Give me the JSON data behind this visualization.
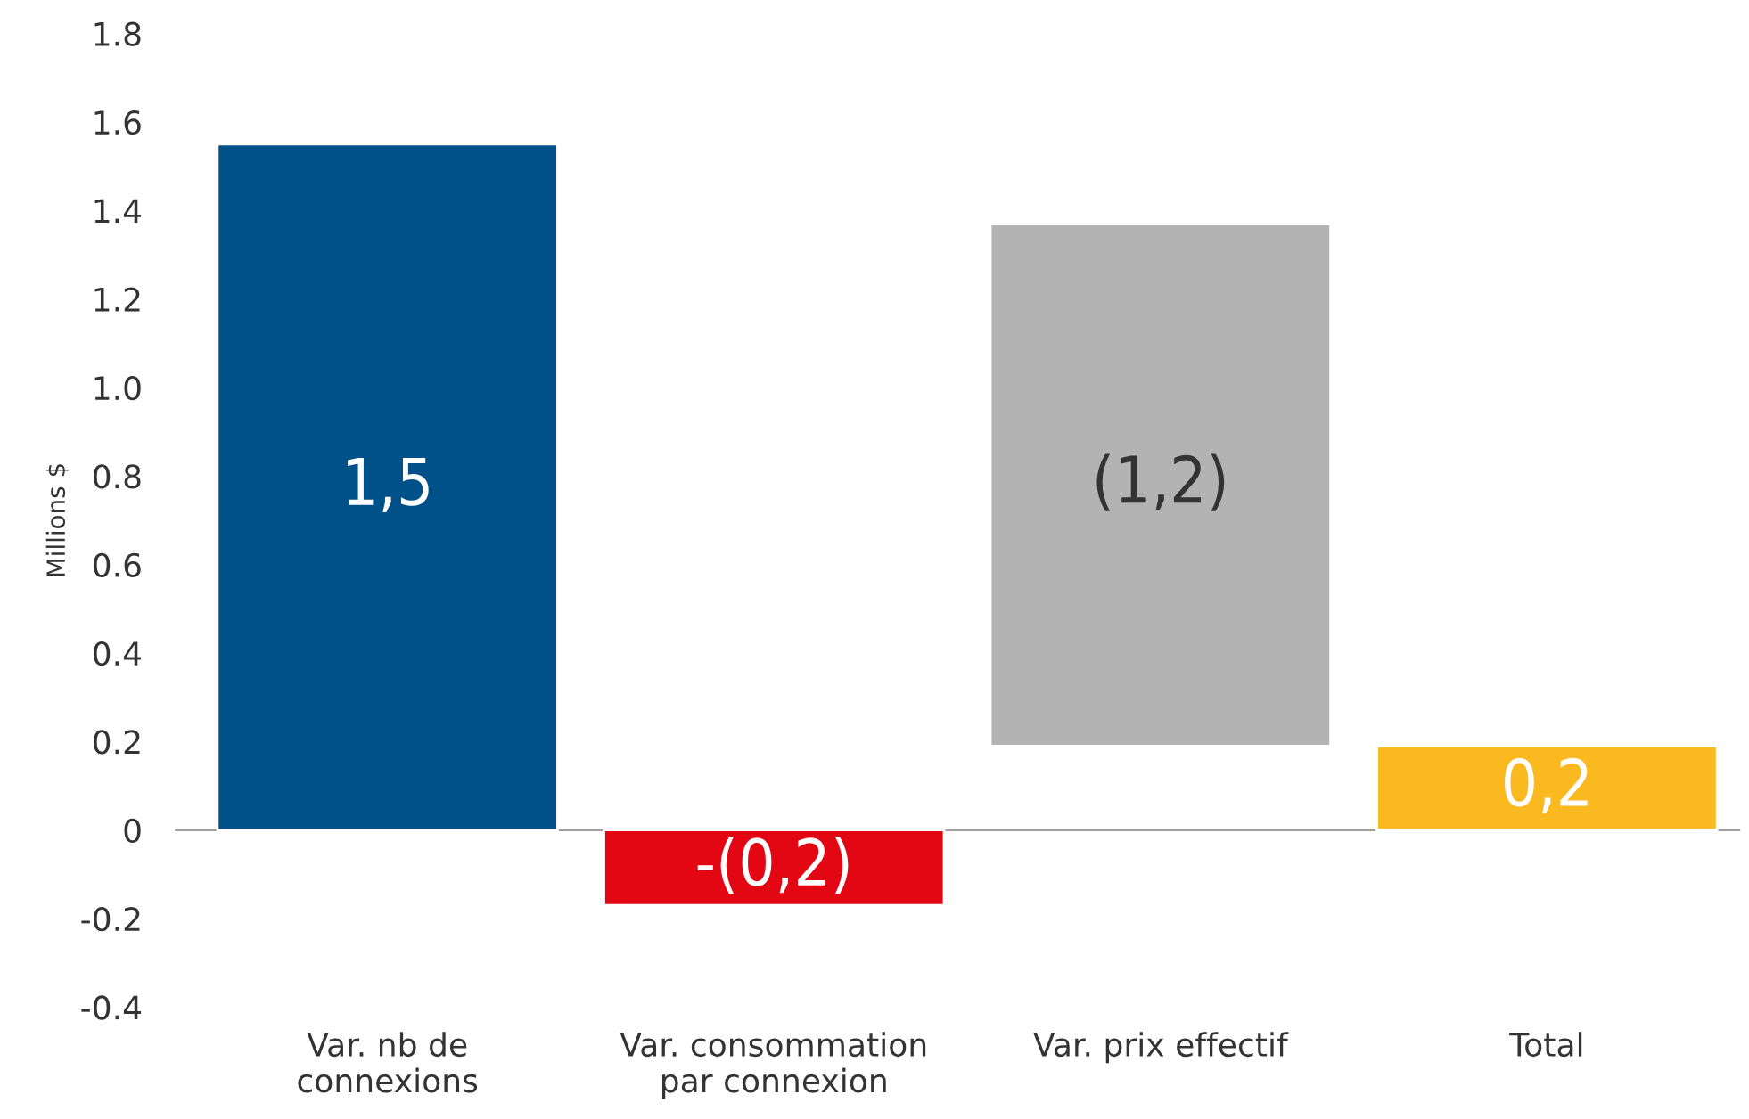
{
  "chart_data": {
    "type": "bar",
    "ylabel": "Millions $",
    "categories": [
      "Var. nb de\nconnexions",
      "Var. consommation\npar connexion",
      "Var. prix effectif",
      "Total"
    ],
    "values": [
      1.55,
      -0.17,
      -1.18,
      0.19
    ],
    "base": [
      0,
      0,
      1.37,
      0
    ],
    "colors": [
      "#00508a",
      "#e30613",
      "#b3b3b3",
      "#fbb920"
    ],
    "value_labels": [
      "1,5",
      "-(0,2)",
      "(1,2)",
      "0,2"
    ],
    "ylim": [
      -0.4,
      1.8
    ],
    "yticks": [
      -0.4,
      -0.2,
      0,
      0.2,
      0.4,
      0.6,
      0.8,
      {
        "value": 1,
        "label": "1.0"
      },
      1.2,
      1.4,
      1.6,
      1.8
    ],
    "ref_lines": [
      {
        "axis": "y",
        "value": 0,
        "color": "#a0a0a0"
      }
    ],
    "grid": false,
    "legend": false
  }
}
